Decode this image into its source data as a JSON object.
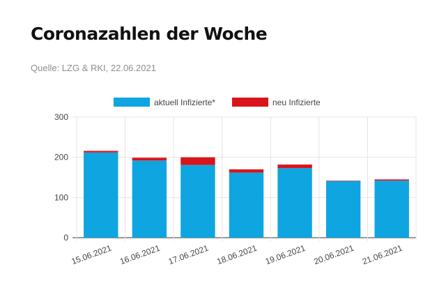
{
  "header": {
    "title": "Coronazahlen der Woche",
    "source": "Quelle: LZG & RKI, 22.06.2021"
  },
  "colors": {
    "aktuell": "#0ea5e0",
    "neu": "#d9151b",
    "grid": "#e4e4e4",
    "axis": "#333333",
    "text": "#444444"
  },
  "chart_data": {
    "type": "bar",
    "stacked": true,
    "categories": [
      "15.06.2021",
      "16.06.2021",
      "17.06.2021",
      "18.06.2021",
      "19.06.2021",
      "20.06.2021",
      "21.06.2021"
    ],
    "series": [
      {
        "name": "aktuell Infizierte*",
        "values": [
          212,
          192,
          181,
          162,
          173,
          141,
          142
        ]
      },
      {
        "name": "neu Infizierte",
        "values": [
          4,
          7,
          19,
          8,
          9,
          1,
          3
        ]
      }
    ],
    "ylim": [
      0,
      300
    ],
    "yticks": [
      0,
      100,
      200,
      300
    ],
    "grid": true,
    "legend_position": "top",
    "xlabel": "",
    "ylabel": ""
  }
}
